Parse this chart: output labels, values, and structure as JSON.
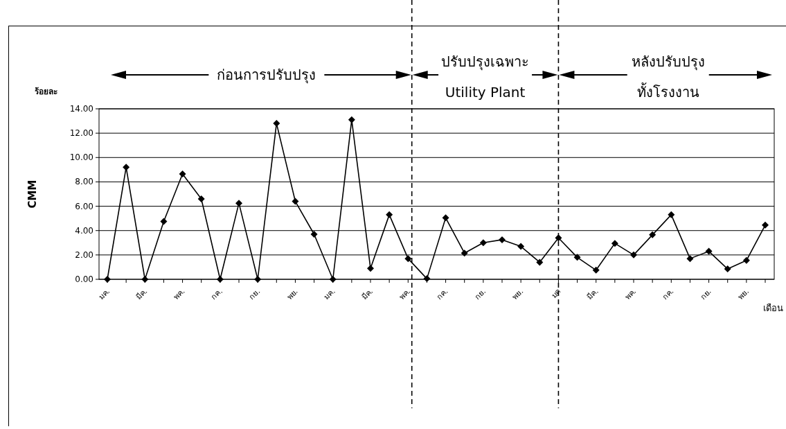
{
  "chart_data": {
    "type": "line",
    "xlabel": "เดือน",
    "ylabel": "CMM",
    "categories": [
      "มค.",
      null,
      "มีค.",
      null,
      "พค.",
      null,
      "กค.",
      null,
      "กย.",
      null,
      "พย.",
      null,
      "มค.",
      null,
      "มีค.",
      null,
      "พค.",
      null,
      "กค.",
      null,
      "กย.",
      null,
      "พย.",
      null,
      "มค",
      null,
      "มีค.",
      null,
      "พค.",
      null,
      "กค.",
      null,
      "กย.",
      null,
      "พย.",
      null
    ],
    "series": [
      {
        "color": "#000000",
        "values": [
          0,
          9.2,
          0,
          4.75,
          8.65,
          6.6,
          0,
          6.25,
          0,
          12.8,
          6.4,
          3.7,
          0,
          13.1,
          0.9,
          5.3,
          1.7,
          0.05,
          5.05,
          2.15,
          3.0,
          3.25,
          2.7,
          1.4,
          3.4,
          1.8,
          0.75,
          2.95,
          2.0,
          3.65,
          5.3,
          1.7,
          2.3,
          0.85,
          1.55,
          4.45
        ]
      }
    ],
    "ylim": [
      0,
      14
    ],
    "yticks": [
      {
        "value": 0,
        "label": "0.00"
      },
      {
        "value": 2,
        "label": "2.00"
      },
      {
        "value": 4,
        "label": "4.00"
      },
      {
        "value": 6,
        "label": "6.00"
      },
      {
        "value": 8,
        "label": "8.00"
      },
      {
        "value": 10,
        "label": "10.00"
      },
      {
        "value": 12,
        "label": "12.00"
      },
      {
        "value": 14,
        "label": "14.00"
      }
    ],
    "grid": "y",
    "marker": "diamond",
    "line_style": "solid",
    "annotations": [
      "ก่อนการปรับปรุง",
      "ปรับปรุงเฉพาะ",
      "Utility Plant",
      "หลังปรับปรุง",
      "ทั้งโรงงาน",
      "ร้อยละ"
    ]
  }
}
